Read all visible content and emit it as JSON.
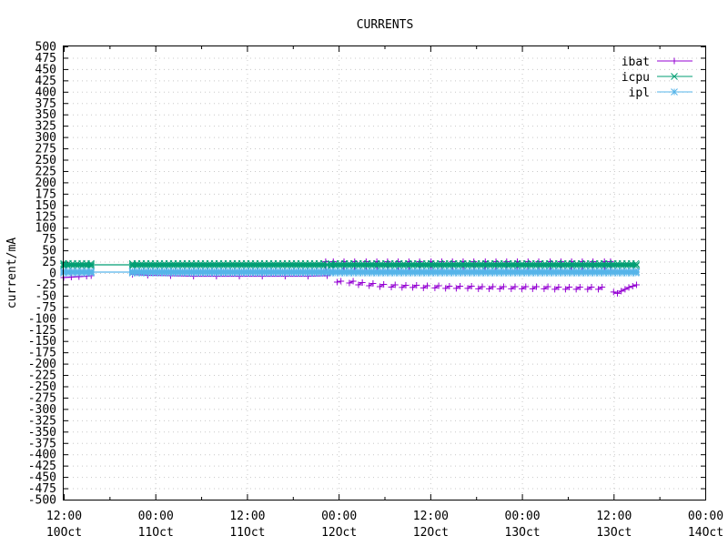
{
  "chart_data": {
    "type": "line",
    "title": "CURRENTS",
    "xlabel": "",
    "ylabel": "current/mA",
    "ylim": [
      -500,
      500
    ],
    "ytick_step": 25,
    "xlim": [
      0,
      84
    ],
    "x_unit": "hours since 10Oct 12:00",
    "xticks": [
      {
        "x": 0,
        "line1": "12:00",
        "line2": "10Oct"
      },
      {
        "x": 12,
        "line1": "00:00",
        "line2": "11Oct"
      },
      {
        "x": 24,
        "line1": "12:00",
        "line2": "11Oct"
      },
      {
        "x": 36,
        "line1": "00:00",
        "line2": "12Oct"
      },
      {
        "x": 48,
        "line1": "12:00",
        "line2": "12Oct"
      },
      {
        "x": 60,
        "line1": "00:00",
        "line2": "13Oct"
      },
      {
        "x": 72,
        "line1": "12:00",
        "line2": "13Oct"
      },
      {
        "x": 84,
        "line1": "00:00",
        "line2": "14Oct"
      }
    ],
    "grid": true,
    "legend_position": "top-right",
    "series": [
      {
        "name": "ibat",
        "color": "#9400d3",
        "marker": "plus",
        "segments": [
          {
            "x": [
              0,
              1,
              2,
              3,
              3.6
            ],
            "y": [
              -10,
              -9,
              -8,
              -7,
              -6
            ]
          },
          {
            "x": [
              9,
              11,
              14,
              17,
              20,
              23,
              26,
              29,
              32,
              34.5
            ],
            "y": [
              -3,
              -5,
              -6,
              -7,
              -7,
              -7,
              -7,
              -7,
              -7,
              -6
            ]
          },
          {
            "x": [
              35.8,
              36.3
            ],
            "y": [
              -20,
              -18
            ]
          },
          {
            "x": [
              37.4,
              37.9
            ],
            "y": [
              -22,
              -18
            ]
          },
          {
            "x": [
              38.6,
              39.1
            ],
            "y": [
              -26,
              -21
            ]
          },
          {
            "x": [
              40.0,
              40.5
            ],
            "y": [
              -28,
              -23
            ]
          },
          {
            "x": [
              41.4,
              41.9
            ],
            "y": [
              -30,
              -25
            ]
          },
          {
            "x": [
              42.9,
              43.4
            ],
            "y": [
              -31,
              -26
            ]
          },
          {
            "x": [
              44.3,
              44.8
            ],
            "y": [
              -32,
              -27
            ]
          },
          {
            "x": [
              45.7,
              46.2
            ],
            "y": [
              -32,
              -27
            ]
          },
          {
            "x": [
              47.1,
              47.6
            ],
            "y": [
              -33,
              -28
            ]
          },
          {
            "x": [
              48.6,
              49.1
            ],
            "y": [
              -33,
              -28
            ]
          },
          {
            "x": [
              50.0,
              50.5
            ],
            "y": [
              -34,
              -29
            ]
          },
          {
            "x": [
              51.4,
              51.9
            ],
            "y": [
              -34,
              -29
            ]
          },
          {
            "x": [
              52.9,
              53.4
            ],
            "y": [
              -34,
              -29
            ]
          },
          {
            "x": [
              54.3,
              54.8
            ],
            "y": [
              -35,
              -30
            ]
          },
          {
            "x": [
              55.7,
              56.2
            ],
            "y": [
              -35,
              -30
            ]
          },
          {
            "x": [
              57.1,
              57.6
            ],
            "y": [
              -35,
              -30
            ]
          },
          {
            "x": [
              58.6,
              59.1
            ],
            "y": [
              -35,
              -30
            ]
          },
          {
            "x": [
              60.0,
              60.5
            ],
            "y": [
              -35,
              -30
            ]
          },
          {
            "x": [
              61.4,
              61.9
            ],
            "y": [
              -35,
              -30
            ]
          },
          {
            "x": [
              62.9,
              63.4
            ],
            "y": [
              -35,
              -30
            ]
          },
          {
            "x": [
              64.3,
              64.8
            ],
            "y": [
              -36,
              -31
            ]
          },
          {
            "x": [
              65.7,
              66.2
            ],
            "y": [
              -36,
              -31
            ]
          },
          {
            "x": [
              67.1,
              67.6
            ],
            "y": [
              -36,
              -31
            ]
          },
          {
            "x": [
              68.6,
              69.1
            ],
            "y": [
              -36,
              -31
            ]
          },
          {
            "x": [
              70.0,
              70.5
            ],
            "y": [
              -36,
              -31
            ]
          },
          {
            "x": [
              72.0,
              72.5,
              73.0,
              73.5,
              74.0,
              74.5,
              75.0
            ],
            "y": [
              -42,
              -45,
              -40,
              -36,
              -32,
              -29,
              -26
            ]
          }
        ],
        "spikes": {
          "x": [
            34.3,
            35.3,
            36.7,
            38.1,
            39.6,
            41.0,
            42.4,
            43.8,
            45.2,
            46.6,
            48.1,
            49.5,
            50.9,
            52.3,
            53.7,
            55.2,
            56.6,
            58.0,
            59.4,
            60.8,
            62.2,
            63.7,
            65.1,
            66.5,
            67.9,
            69.3,
            70.8,
            71.6
          ],
          "top": 25
        }
      },
      {
        "name": "icpu",
        "color": "#009e73",
        "marker": "cross",
        "segments": [
          {
            "x": [
              0,
              3.6,
              9,
              34.5,
              35.0,
              75.0
            ],
            "y": [
              18,
              18,
              18,
              18,
              18,
              18
            ]
          }
        ],
        "dense_ranges": [
          [
            0,
            3.6
          ],
          [
            9,
            34.5
          ],
          [
            35.0,
            75.0
          ]
        ],
        "band": [
          13,
          23
        ]
      },
      {
        "name": "ipl",
        "color": "#56b4e9",
        "marker": "star",
        "segments": [
          {
            "x": [
              0,
              3.6,
              9,
              34.5,
              35.0,
              75.0
            ],
            "y": [
              2,
              2,
              2,
              2,
              2,
              2
            ]
          }
        ],
        "dense_ranges": [
          [
            0,
            3.6
          ],
          [
            9,
            34.5
          ],
          [
            35.0,
            75.0
          ]
        ],
        "band": [
          -2,
          6
        ]
      }
    ]
  }
}
